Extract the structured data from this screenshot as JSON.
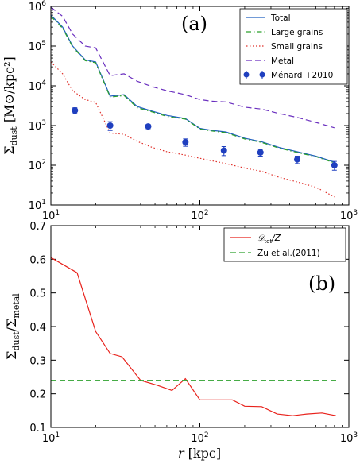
{
  "chart_data": [
    {
      "type": "line",
      "panel": "(a)",
      "xscale": "log",
      "yscale": "log",
      "xlim": [
        10,
        1000
      ],
      "ylim": [
        10,
        1000000
      ],
      "xticks": [
        10,
        100,
        1000
      ],
      "xtick_labels": [
        "10¹",
        "10²",
        "10³"
      ],
      "yticks": [
        10,
        100,
        1000,
        10000,
        100000,
        1000000
      ],
      "ytick_labels": [
        "10¹",
        "10²",
        "10³",
        "10⁴",
        "10⁵",
        "10⁶"
      ],
      "ylabel": "Σ_dust [M⊙/kpc²]",
      "legend_position": "upper right",
      "series": [
        {
          "name": "Total",
          "color": "#1f5fbf",
          "style": "solid",
          "x": [
            10,
            12,
            14,
            17,
            20,
            25,
            31,
            38,
            48,
            60,
            80,
            100,
            120,
            150,
            200,
            260,
            340,
            450,
            600,
            800
          ],
          "y": [
            600000,
            300000,
            100000,
            45000,
            40000,
            5500,
            6000,
            3000,
            2300,
            1800,
            1500,
            850,
            760,
            690,
            480,
            390,
            280,
            220,
            170,
            120
          ]
        },
        {
          "name": "Large grains",
          "color": "#2ca02c",
          "style": "dashdot",
          "x": [
            10,
            12,
            14,
            17,
            20,
            25,
            31,
            38,
            48,
            60,
            80,
            100,
            120,
            150,
            200,
            260,
            340,
            450,
            600,
            800
          ],
          "y": [
            560000,
            280000,
            95000,
            43000,
            38000,
            5200,
            5700,
            2800,
            2200,
            1700,
            1450,
            820,
            730,
            660,
            460,
            375,
            270,
            210,
            165,
            115
          ]
        },
        {
          "name": "Small grains",
          "color": "#e0302a",
          "style": "dotted",
          "x": [
            10,
            12,
            14,
            17,
            20,
            25,
            31,
            38,
            48,
            60,
            80,
            100,
            120,
            150,
            200,
            260,
            340,
            450,
            600,
            800
          ],
          "y": [
            40000,
            20000,
            7500,
            4500,
            3800,
            650,
            600,
            400,
            280,
            220,
            180,
            150,
            130,
            110,
            85,
            70,
            50,
            38,
            28,
            16
          ]
        },
        {
          "name": "Metal",
          "color": "#6a2fbf",
          "style": "dashed",
          "x": [
            10,
            12,
            14,
            17,
            20,
            25,
            31,
            38,
            48,
            60,
            80,
            100,
            120,
            150,
            200,
            260,
            340,
            450,
            600,
            800
          ],
          "y": [
            950000,
            560000,
            200000,
            100000,
            90000,
            18000,
            20000,
            13000,
            9500,
            7500,
            6000,
            4500,
            4100,
            3900,
            2900,
            2600,
            2000,
            1600,
            1200,
            880
          ]
        }
      ],
      "observations": {
        "name": "Ménard +2010",
        "color": "#1f3fbf",
        "x": [
          14.5,
          25,
          45,
          80,
          145,
          255,
          450,
          800
        ],
        "y": [
          2400,
          1000,
          950,
          380,
          235,
          210,
          140,
          100
        ],
        "yerr": [
          [
            400,
            250,
            120,
            80,
            60,
            40,
            30,
            25
          ],
          [
            400,
            250,
            120,
            80,
            60,
            40,
            30,
            25
          ]
        ]
      }
    },
    {
      "type": "line",
      "panel": "(b)",
      "xscale": "log",
      "yscale": "linear",
      "xlim": [
        10,
        1000
      ],
      "ylim": [
        0.1,
        0.7
      ],
      "xticks": [
        10,
        100,
        1000
      ],
      "xtick_labels": [
        "10¹",
        "10²",
        "10³"
      ],
      "yticks": [
        0.1,
        0.2,
        0.3,
        0.4,
        0.5,
        0.6,
        0.7
      ],
      "ytick_labels": [
        "0.1",
        "0.2",
        "0.3",
        "0.4",
        "0.5",
        "0.6",
        "0.7"
      ],
      "xlabel": "r [kpc]",
      "ylabel": "Σ_dust/Σ_metal",
      "legend_position": "upper right",
      "series": [
        {
          "name": "𝒟_tot/Z",
          "color": "#e8211b",
          "style": "solid",
          "x": [
            10,
            15,
            20,
            25,
            30,
            40,
            52,
            65,
            80,
            100,
            130,
            165,
            200,
            260,
            330,
            420,
            520,
            660,
            820
          ],
          "y": [
            0.605,
            0.56,
            0.385,
            0.32,
            0.31,
            0.24,
            0.225,
            0.21,
            0.245,
            0.182,
            0.182,
            0.182,
            0.163,
            0.162,
            0.14,
            0.135,
            0.14,
            0.143,
            0.135
          ]
        },
        {
          "name": "Zu et al.(2011)",
          "color": "#2ca02c",
          "style": "dashed",
          "x": [
            10,
            850
          ],
          "y": [
            0.24,
            0.24
          ]
        }
      ]
    }
  ],
  "panels": {
    "a": {
      "tag": "(a)",
      "ylabel_main": "Σ",
      "ylabel_sub": "dust",
      "ylabel_units": " [M⊙/kpc²]"
    },
    "b": {
      "tag": "(b)",
      "ylabel_main1": "Σ",
      "ylabel_sub1": "dust",
      "ylabel_mid": "/Σ",
      "ylabel_sub2": "metal",
      "xlabel_main": "r",
      "xlabel_units": " [kpc]"
    }
  }
}
